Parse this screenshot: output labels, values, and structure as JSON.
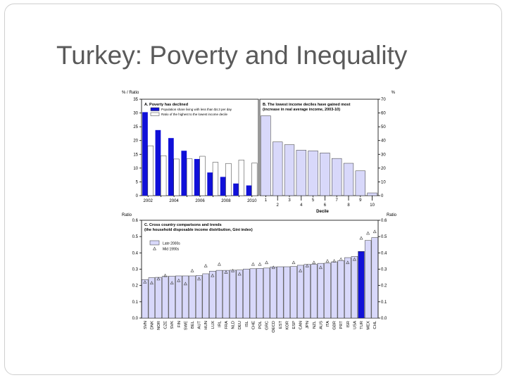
{
  "slide": {
    "title": "Turkey: Poverty and Inequality"
  },
  "chart_data": [
    {
      "type": "bar",
      "panel": "A",
      "title": "A. Poverty has declined",
      "ylabel": "% / Ratio",
      "ylim": [
        0,
        35
      ],
      "yticks": [
        "0",
        "5",
        "10",
        "15",
        "20",
        "25",
        "30",
        "35"
      ],
      "categories": [
        "2002",
        "2003",
        "2004",
        "2005",
        "2006",
        "2007",
        "2008",
        "2009",
        "2010"
      ],
      "xtick_labels": [
        "2002",
        "2004",
        "2006",
        "2008",
        "2010"
      ],
      "series": [
        {
          "name": "Population share living with less than $4.3 per day",
          "color": "#1010d8",
          "values": [
            30.3,
            23.8,
            20.9,
            16.3,
            13.3,
            8.4,
            6.8,
            4.4,
            3.7
          ]
        },
        {
          "name": "Ratio of the highest to the lowest income decile",
          "color": "#ffffff",
          "values": [
            18.1,
            14.5,
            13.3,
            13.4,
            14.3,
            12.1,
            11.7,
            12.9,
            11.8
          ]
        }
      ]
    },
    {
      "type": "bar",
      "panel": "B",
      "title": "B. The lowest income deciles have gained most",
      "subtitle": "(increase in real average income, 2003-10)",
      "ylabel": "%",
      "xlabel": "Decile",
      "ylim": [
        0,
        70
      ],
      "yticks": [
        "0",
        "10",
        "20",
        "30",
        "40",
        "50",
        "60",
        "70"
      ],
      "categories": [
        "1",
        "2",
        "3",
        "4",
        "5",
        "6",
        "7",
        "8",
        "9",
        "10"
      ],
      "values": [
        58,
        39,
        37,
        33,
        32.5,
        31,
        27,
        23.5,
        18,
        2
      ],
      "color": "#d8d8fa"
    },
    {
      "type": "bar",
      "panel": "C",
      "title": "C. Cross country comparisons and trends",
      "subtitle": "(the household disposable income distribution, Gini index)",
      "ylabel": "Ratio",
      "ylabel_right": "Ratio",
      "ylim": [
        0,
        0.6
      ],
      "yticks": [
        "0.0",
        "0.1",
        "0.2",
        "0.3",
        "0.4",
        "0.5",
        "0.6"
      ],
      "categories": [
        "SVN",
        "DNK",
        "NOR",
        "CZE",
        "SVK",
        "FIN",
        "SWE",
        "BEL",
        "AUT",
        "HUN",
        "LUX",
        "IRL",
        "FRA",
        "NLD",
        "DEU",
        "ISL",
        "CHE",
        "POL",
        "GRC",
        "OECD",
        "EST",
        "KOR",
        "ESP",
        "CAN",
        "JPN",
        "NZL",
        "AUS",
        "ITA",
        "GBR",
        "PRT",
        "ISR",
        "USA",
        "TUR",
        "MEX",
        "CHL"
      ],
      "series": [
        {
          "name": "Late 2000s",
          "color": "#d8d8fa",
          "values": [
            0.236,
            0.248,
            0.25,
            0.256,
            0.257,
            0.259,
            0.259,
            0.259,
            0.261,
            0.272,
            0.288,
            0.293,
            0.293,
            0.294,
            0.295,
            0.301,
            0.303,
            0.305,
            0.307,
            0.314,
            0.315,
            0.315,
            0.317,
            0.324,
            0.329,
            0.33,
            0.336,
            0.337,
            0.345,
            0.353,
            0.371,
            0.378,
            0.409,
            0.476,
            0.494
          ]
        },
        {
          "name": "Mid 1990s",
          "values": [
            0.22,
            0.215,
            0.24,
            0.26,
            0.215,
            0.23,
            0.21,
            0.29,
            0.24,
            0.32,
            0.26,
            0.33,
            0.28,
            0.29,
            0.27,
            null,
            0.33,
            0.33,
            0.34,
            0.31,
            null,
            null,
            0.34,
            0.29,
            0.32,
            0.34,
            0.31,
            0.35,
            0.35,
            0.36,
            0.34,
            0.36,
            0.49,
            0.52,
            0.53
          ]
        }
      ],
      "highlight": {
        "TUR": "#1010d8"
      }
    }
  ]
}
